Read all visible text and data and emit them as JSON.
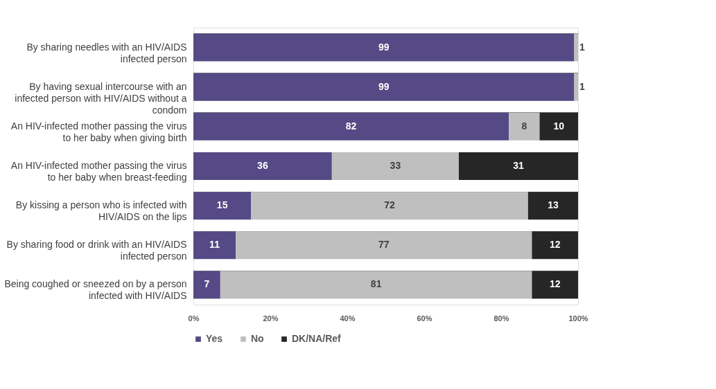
{
  "chart_data": {
    "type": "bar",
    "orientation": "horizontal",
    "stacked": true,
    "categories": [
      "By sharing needles with an HIV/AIDS\ninfected person",
      "By having sexual intercourse with an\ninfected person with HIV/AIDS without a\ncondom",
      "An HIV-infected mother passing the virus\nto her baby when giving birth",
      "An HIV-infected mother passing the virus\nto her baby when breast-feeding",
      "By kissing a person who is infected with\nHIV/AIDS on the lips",
      "By sharing food or drink with an HIV/AIDS\ninfected person",
      "Being coughed or sneezed on by a person\ninfected with HIV/AIDS"
    ],
    "series": [
      {
        "name": "Yes",
        "color": "#554a85",
        "values": [
          99,
          99,
          82,
          36,
          15,
          11,
          7
        ]
      },
      {
        "name": "No",
        "color": "#bfbfbf",
        "values": [
          1,
          1,
          8,
          33,
          72,
          77,
          81
        ]
      },
      {
        "name": "DK/NA/Ref",
        "color": "#262626",
        "values": [
          null,
          null,
          10,
          31,
          13,
          12,
          12
        ]
      }
    ],
    "data_labels": true,
    "xlim": [
      0,
      100
    ],
    "xticks": [
      {
        "value": 0,
        "label": "0%"
      },
      {
        "value": 20,
        "label": "20%"
      },
      {
        "value": 40,
        "label": "40%"
      },
      {
        "value": 60,
        "label": "60%"
      },
      {
        "value": 80,
        "label": "80%"
      },
      {
        "value": 100,
        "label": "100%"
      }
    ],
    "grid": "y",
    "legend": "bottom"
  }
}
